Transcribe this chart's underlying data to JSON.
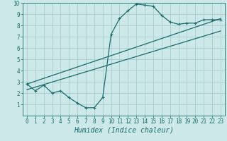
{
  "title": "",
  "xlabel": "Humidex (Indice chaleur)",
  "bg_color": "#cce8e8",
  "grid_color": "#aacccc",
  "line_color": "#1a6b6b",
  "xlim": [
    -0.5,
    23.5
  ],
  "ylim": [
    0,
    10
  ],
  "xticks": [
    0,
    1,
    2,
    3,
    4,
    5,
    6,
    7,
    8,
    9,
    10,
    11,
    12,
    13,
    14,
    15,
    16,
    17,
    18,
    19,
    20,
    21,
    22,
    23
  ],
  "yticks": [
    1,
    2,
    3,
    4,
    5,
    6,
    7,
    8,
    9,
    10
  ],
  "humidex_x": [
    0,
    1,
    2,
    3,
    4,
    5,
    6,
    7,
    8,
    9,
    10,
    11,
    12,
    13,
    14,
    15,
    16,
    17,
    18,
    19,
    20,
    21,
    22,
    23
  ],
  "humidex_y": [
    2.8,
    2.2,
    2.7,
    2.0,
    2.2,
    1.6,
    1.1,
    0.7,
    0.7,
    1.6,
    7.2,
    8.6,
    9.3,
    9.9,
    9.8,
    9.7,
    8.9,
    8.3,
    8.1,
    8.2,
    8.2,
    8.5,
    8.5,
    8.5
  ],
  "trend1_x": [
    0,
    23
  ],
  "trend1_y": [
    2.8,
    8.6
  ],
  "trend2_x": [
    0,
    23
  ],
  "trend2_y": [
    2.3,
    7.5
  ],
  "font_size_ticks": 5.5,
  "font_size_xlabel": 7.0,
  "line_width": 0.9,
  "marker_size": 3.0
}
